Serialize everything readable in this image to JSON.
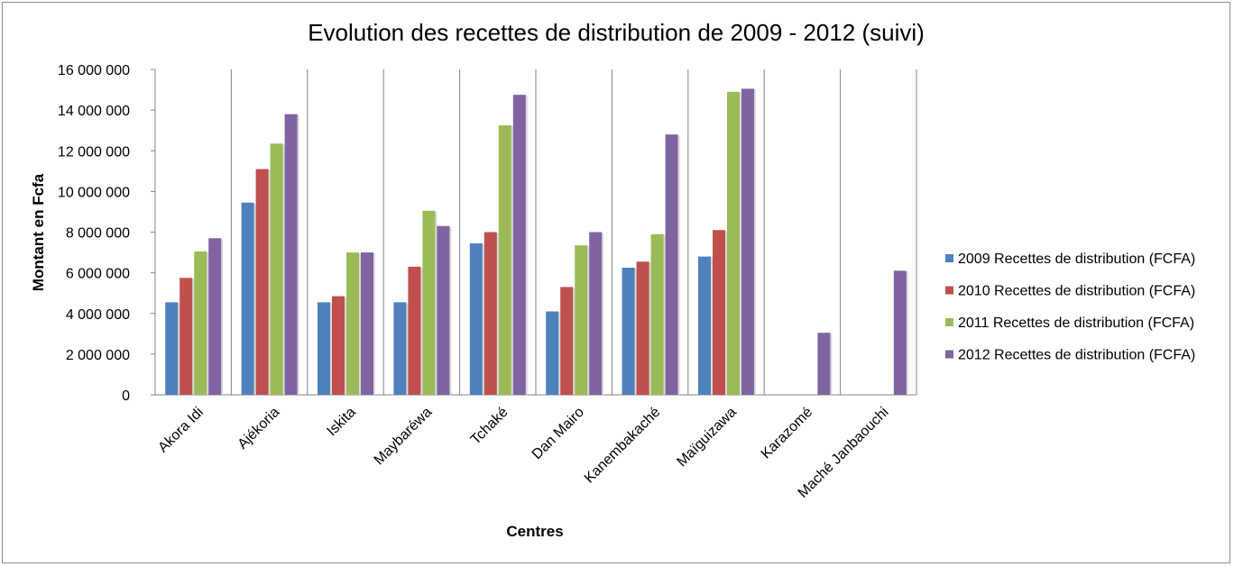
{
  "chart_data": {
    "type": "bar",
    "title": "Evolution des recettes  de distribution de 2009 - 2012 (suivi)",
    "xlabel": "Centres",
    "ylabel": "Montant en Fcfa",
    "ylim": [
      0,
      16000000
    ],
    "ytick_step": 2000000,
    "ytick_labels": [
      "0",
      "2 000 000",
      "4 000 000",
      "6 000 000",
      "8 000 000",
      "10 000 000",
      "12 000 000",
      "14 000 000",
      "16 000 000"
    ],
    "categories": [
      "Akora Idi",
      "Ajékoria",
      "Iskita",
      "Maybaréwa",
      "Tchaké",
      "Dan Mairo",
      "Kanembakaché",
      "Maïguizawa",
      "Karazomé",
      "Maché Janbaouchi"
    ],
    "series": [
      {
        "name": "2009 Recettes de distribution (FCFA)",
        "color": "#4f81bd",
        "values": [
          4550000,
          9450000,
          4550000,
          4550000,
          7450000,
          4100000,
          6250000,
          6800000,
          null,
          null
        ]
      },
      {
        "name": "2010 Recettes de distribution (FCFA)",
        "color": "#c0504d",
        "values": [
          5750000,
          11100000,
          4850000,
          6300000,
          8000000,
          5300000,
          6550000,
          8100000,
          null,
          null
        ]
      },
      {
        "name": "2011 Recettes de distribution (FCFA)",
        "color": "#9bbb59",
        "values": [
          7050000,
          12350000,
          7000000,
          9050000,
          13250000,
          7350000,
          7900000,
          14900000,
          null,
          null
        ]
      },
      {
        "name": "2012 Recettes de distribution (FCFA)",
        "color": "#8064a2",
        "values": [
          7700000,
          13800000,
          7000000,
          8300000,
          14750000,
          8000000,
          12800000,
          15050000,
          3050000,
          6100000
        ]
      }
    ],
    "grid": false,
    "category_separators": true,
    "legend_position": "right"
  }
}
